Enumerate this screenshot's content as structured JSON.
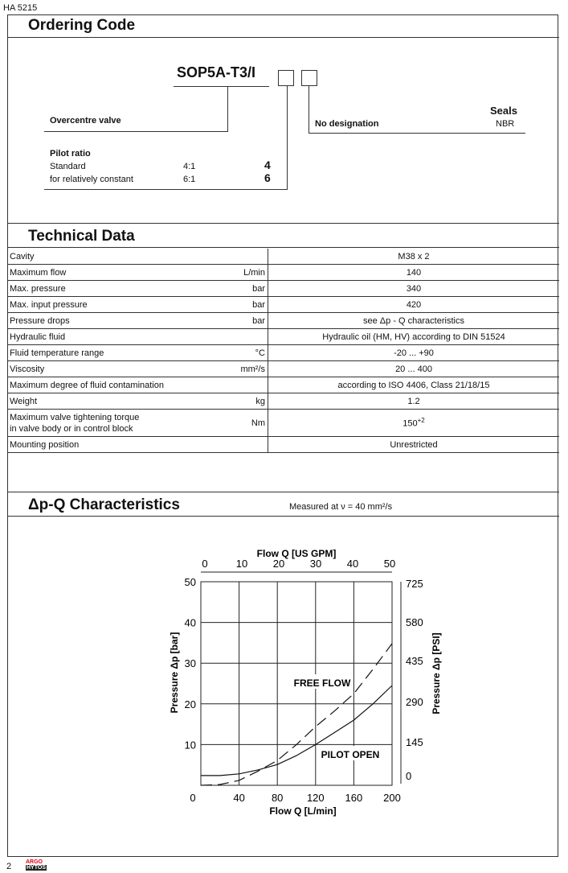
{
  "doc_id": "HA 5215",
  "page_number": "2",
  "logo": {
    "line1": "ARGO",
    "line2": "HYTOS",
    "color": "#e2001a"
  },
  "ordering": {
    "title": "Ordering Code",
    "code": "SOP5A-T3/I",
    "valve_label": "Overcentre valve",
    "pilot_title": "Pilot ratio",
    "pilot_rows": [
      {
        "label": "Standard",
        "ratio": "4:1",
        "code": "4"
      },
      {
        "label": "for relatively constant",
        "ratio": "6:1",
        "code": "6"
      }
    ],
    "seals_title": "Seals",
    "seals_label": "No designation",
    "seals_value": "NBR"
  },
  "technical": {
    "title": "Technical Data",
    "rows": [
      {
        "param": "Cavity",
        "unit": "",
        "value": "M38 x 2"
      },
      {
        "param": "Maximum flow",
        "unit": "L/min",
        "value": "140"
      },
      {
        "param": "Max. pressure",
        "unit": "bar",
        "value": "340"
      },
      {
        "param": "Max. input pressure",
        "unit": "bar",
        "value": "420"
      },
      {
        "param": "Pressure drops",
        "unit": "bar",
        "value": "see Δp - Q characteristics"
      },
      {
        "param": "Hydraulic fluid",
        "unit": "",
        "value": "Hydraulic oil (HM, HV) according to DIN 51524"
      },
      {
        "param": "Fluid temperature range",
        "unit": "°C",
        "value": "-20 ... +90"
      },
      {
        "param": "Viscosity",
        "unit": "mm²/s",
        "value": "20 ... 400"
      },
      {
        "param": "Maximum degree of fluid contamination",
        "unit": "",
        "value": "according to ISO 4406, Class 21/18/15"
      },
      {
        "param": "Weight",
        "unit": "kg",
        "value": "1.2"
      },
      {
        "param": "Maximum valve tightening torque",
        "param2": "in valve body or in control block",
        "unit": "Nm",
        "value": "150",
        "value_sup": "+2"
      },
      {
        "param": "Mounting position",
        "unit": "",
        "value": "Unrestricted"
      }
    ]
  },
  "characteristics": {
    "title": "Δp-Q Characteristics",
    "note": "Measured at ν = 40 mm²/s"
  },
  "chart_data": {
    "type": "line",
    "xlabel": "Flow Q [L/min]",
    "x2label": "Flow Q [US GPM]",
    "ylabel": "Pressure Δp [bar]",
    "y2label": "Pressure Δp [PSI]",
    "xlim": [
      0,
      200
    ],
    "ylim": [
      0,
      50
    ],
    "xticks": [
      "0",
      "40",
      "80",
      "120",
      "160",
      "200"
    ],
    "x2ticks": [
      "0",
      "10",
      "20",
      "30",
      "40",
      "50"
    ],
    "yticks": [
      "0",
      "10",
      "20",
      "30",
      "40",
      "50"
    ],
    "y2ticks": [
      "0",
      "145",
      "290",
      "435",
      "580",
      "725"
    ],
    "grid": true,
    "series": [
      {
        "name": "FREE FLOW",
        "style": "dashed",
        "x": [
          0,
          20,
          40,
          60,
          80,
          100,
          120,
          140,
          160,
          180,
          200
        ],
        "y": [
          0,
          0.2,
          1.2,
          3.5,
          6.1,
          10,
          14.4,
          18.3,
          22.5,
          28.5,
          34.8
        ]
      },
      {
        "name": "PILOT OPEN",
        "style": "solid",
        "x": [
          0,
          20,
          40,
          60,
          80,
          100,
          120,
          140,
          160,
          180,
          200
        ],
        "y": [
          2.4,
          2.4,
          2.8,
          3.8,
          5.1,
          7.3,
          10,
          13,
          16,
          20,
          24.5
        ]
      }
    ]
  }
}
